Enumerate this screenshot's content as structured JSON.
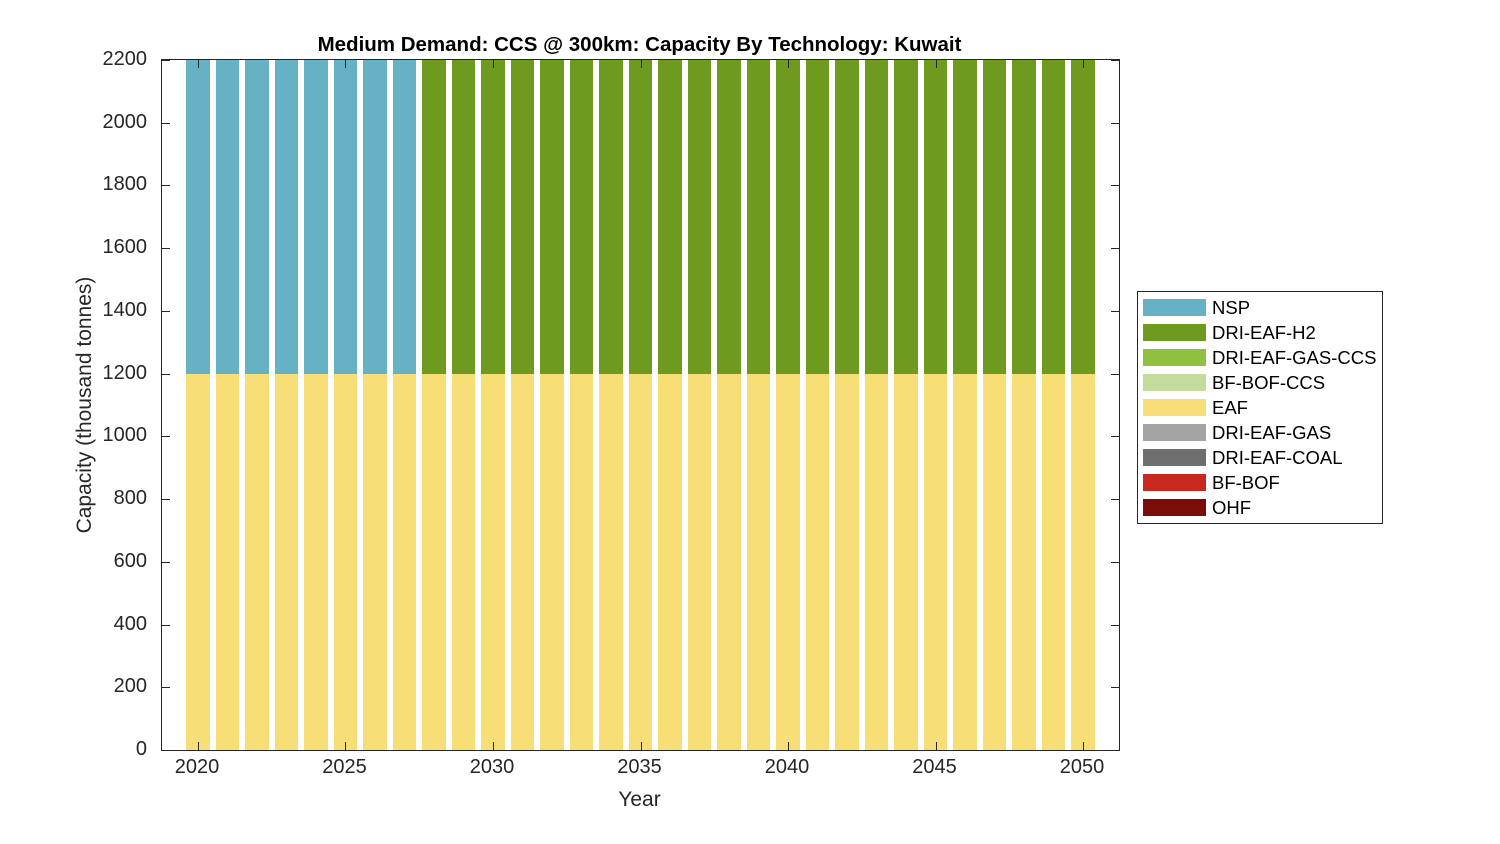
{
  "title": "Medium Demand: CCS @ 300km: Capacity By Technology: Kuwait",
  "xlabel": "Year",
  "ylabel": "Capacity (thousand tonnes)",
  "axes": {
    "x_tick_labels": [
      2020,
      2025,
      2030,
      2035,
      2040,
      2045,
      2050
    ],
    "y_tick_labels": [
      0,
      200,
      400,
      600,
      800,
      1000,
      1200,
      1400,
      1600,
      1800,
      2000,
      2200
    ],
    "axis_color": "#262626",
    "background": "#ffffff"
  },
  "legend": {
    "position": "outside-right",
    "items": [
      {
        "label": "NSP",
        "color": "#66B1C4"
      },
      {
        "label": "DRI-EAF-H2",
        "color": "#6E9A1F"
      },
      {
        "label": "DRI-EAF-GAS-CCS",
        "color": "#8FC03F"
      },
      {
        "label": "BF-BOF-CCS",
        "color": "#C3DC9E"
      },
      {
        "label": "EAF",
        "color": "#F7DE76"
      },
      {
        "label": "DRI-EAF-GAS",
        "color": "#A4A4A4"
      },
      {
        "label": "DRI-EAF-COAL",
        "color": "#6E6E6E"
      },
      {
        "label": "BF-BOF",
        "color": "#C8281E"
      },
      {
        "label": "OHF",
        "color": "#7B0C08"
      }
    ]
  },
  "chart_data": {
    "type": "bar",
    "stacked": true,
    "title": "Medium Demand: CCS @ 300km: Capacity By Technology: Kuwait",
    "xlabel": "Year",
    "ylabel": "Capacity (thousand tonnes)",
    "x": [
      2020,
      2021,
      2022,
      2023,
      2024,
      2025,
      2026,
      2027,
      2028,
      2029,
      2030,
      2031,
      2032,
      2033,
      2034,
      2035,
      2036,
      2037,
      2038,
      2039,
      2040,
      2041,
      2042,
      2043,
      2044,
      2045,
      2046,
      2047,
      2048,
      2049,
      2050
    ],
    "series": [
      {
        "name": "EAF",
        "color": "#F7DE76",
        "values": [
          1200,
          1200,
          1200,
          1200,
          1200,
          1200,
          1200,
          1200,
          1200,
          1200,
          1200,
          1200,
          1200,
          1200,
          1200,
          1200,
          1200,
          1200,
          1200,
          1200,
          1200,
          1200,
          1200,
          1200,
          1200,
          1200,
          1200,
          1200,
          1200,
          1200,
          1200
        ]
      },
      {
        "name": "NSP",
        "color": "#66B1C4",
        "values": [
          1000,
          1000,
          1000,
          1000,
          1000,
          1000,
          1000,
          1000,
          0,
          0,
          0,
          0,
          0,
          0,
          0,
          0,
          0,
          0,
          0,
          0,
          0,
          0,
          0,
          0,
          0,
          0,
          0,
          0,
          0,
          0,
          0
        ]
      },
      {
        "name": "DRI-EAF-H2",
        "color": "#6E9A1F",
        "values": [
          0,
          0,
          0,
          0,
          0,
          0,
          0,
          0,
          1000,
          1000,
          1000,
          1000,
          1000,
          1000,
          1000,
          1000,
          1000,
          1000,
          1000,
          1000,
          1000,
          1000,
          1000,
          1000,
          1000,
          1000,
          1000,
          1000,
          1000,
          1000,
          1000
        ]
      }
    ],
    "ylim": [
      0,
      2200
    ],
    "xlim": [
      2018.78,
      2051.22
    ],
    "bar_width_years": 0.8,
    "grid": false,
    "legend_position": "outside-right",
    "note": "Stacked bars reach the top of the y-axis (2200); upper segments are clipped by the axis limit."
  }
}
